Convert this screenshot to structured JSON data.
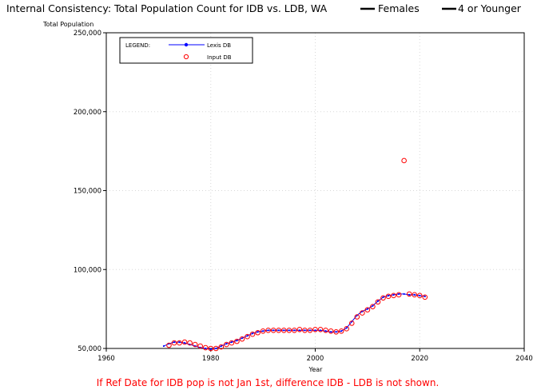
{
  "chart_data": {
    "type": "line",
    "title": "Internal Consistency: Total Population Count for IDB vs. LDB, WA",
    "title_legend": [
      {
        "label": "Females"
      },
      {
        "label": "4 or Younger"
      }
    ],
    "ylabel": "Total Population",
    "xlabel": "Year",
    "xlim": [
      1960,
      2040
    ],
    "ylim": [
      50000,
      250000
    ],
    "x_ticks": [
      1960,
      1980,
      2000,
      2020,
      2040
    ],
    "y_ticks": [
      50000,
      100000,
      150000,
      200000,
      250000
    ],
    "x_tick_labels": [
      "1960",
      "1980",
      "2000",
      "2020",
      "2040"
    ],
    "y_tick_labels": [
      "50,000",
      "100,000",
      "150,000",
      "200,000",
      "250,000"
    ],
    "grid": true,
    "legend": {
      "title": "LEGEND:",
      "placement": "top-left",
      "entries": [
        "Lexis DB",
        "Input DB"
      ]
    },
    "series": [
      {
        "name": "Lexis DB",
        "color": "#0000ff",
        "x": [
          1971,
          1972,
          1973,
          1974,
          1975,
          1976,
          1977,
          1978,
          1979,
          1980,
          1981,
          1982,
          1983,
          1984,
          1985,
          1986,
          1987,
          1988,
          1989,
          1990,
          1991,
          1992,
          1993,
          1994,
          1995,
          1996,
          1997,
          1998,
          1999,
          2000,
          2001,
          2002,
          2003,
          2004,
          2005,
          2006,
          2007,
          2008,
          2009,
          2010,
          2011,
          2012,
          2013,
          2014,
          2015,
          2016,
          2017,
          2018,
          2019,
          2020,
          2021
        ],
        "values": [
          51500,
          53000,
          54000,
          54000,
          53500,
          52500,
          51500,
          50500,
          50000,
          49500,
          50000,
          51500,
          53000,
          54000,
          55000,
          56500,
          58000,
          59500,
          60500,
          61000,
          61500,
          61500,
          61500,
          61500,
          61500,
          61500,
          61500,
          61500,
          61500,
          61500,
          61500,
          61000,
          60500,
          60500,
          61000,
          63000,
          67000,
          71000,
          73500,
          75000,
          77000,
          80000,
          82500,
          83500,
          84000,
          84500,
          84500,
          84000,
          84000,
          83500,
          83000
        ]
      },
      {
        "name": "Input DB",
        "color": "#ff0000",
        "x": [
          1972,
          1973,
          1974,
          1975,
          1976,
          1977,
          1978,
          1979,
          1980,
          1981,
          1982,
          1983,
          1984,
          1985,
          1986,
          1987,
          1988,
          1989,
          1990,
          1991,
          1992,
          1993,
          1994,
          1995,
          1996,
          1997,
          1998,
          1999,
          2000,
          2001,
          2002,
          2003,
          2004,
          2005,
          2006,
          2007,
          2008,
          2009,
          2010,
          2011,
          2012,
          2013,
          2014,
          2015,
          2016,
          2017,
          2018,
          2019,
          2020,
          2021
        ],
        "values": [
          52000,
          53500,
          53500,
          54000,
          53500,
          52500,
          51500,
          50500,
          50000,
          50000,
          51000,
          52500,
          53500,
          54500,
          56000,
          57500,
          59000,
          60000,
          61000,
          61500,
          61500,
          61500,
          61500,
          61500,
          61500,
          62000,
          61500,
          61500,
          62000,
          62000,
          61500,
          61000,
          60500,
          61000,
          62500,
          66000,
          70000,
          72500,
          74500,
          76500,
          79500,
          82000,
          83000,
          83500,
          84000,
          169000,
          84500,
          84000,
          83500,
          82500
        ]
      }
    ]
  },
  "footnote": "If Ref Date for IDB pop is not Jan 1st, difference IDB - LDB is not shown."
}
